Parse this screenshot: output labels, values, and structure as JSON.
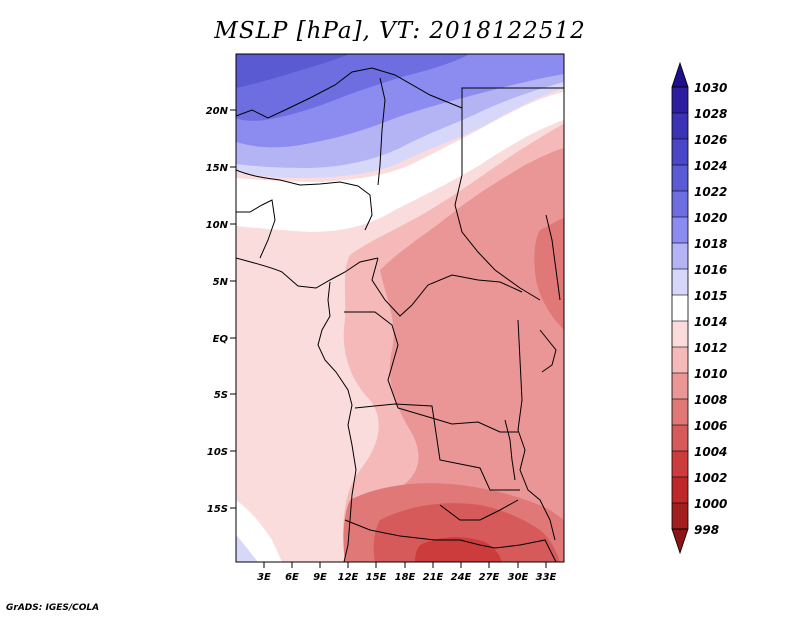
{
  "title": "MSLP [hPa], VT: 2018122512",
  "footer": "GrADS: IGES/COLA",
  "map": {
    "lat_labels": [
      "20N",
      "15N",
      "10N",
      "5N",
      "EQ",
      "5S",
      "10S",
      "15S"
    ],
    "lon_labels": [
      "3E",
      "6E",
      "9E",
      "12E",
      "15E",
      "18E",
      "21E",
      "24E",
      "27E",
      "30E",
      "33E"
    ]
  },
  "colorbar": {
    "levels": [
      "1030",
      "1028",
      "1026",
      "1024",
      "1022",
      "1020",
      "1018",
      "1016",
      "1015",
      "1014",
      "1012",
      "1010",
      "1008",
      "1006",
      "1004",
      "1002",
      "1000",
      "998"
    ],
    "colors": [
      "#1e0f8c",
      "#2d1ea0",
      "#3c32b4",
      "#4b46c8",
      "#5a5ad2",
      "#6e6ee1",
      "#8c8cf0",
      "#b4b4f5",
      "#d7d7fa",
      "#ffffff",
      "#fadcdc",
      "#f5b9b9",
      "#eb9696",
      "#e17878",
      "#d75a5a",
      "#cd3c3c",
      "#be2828",
      "#a01e1e",
      "#8c1414"
    ]
  }
}
